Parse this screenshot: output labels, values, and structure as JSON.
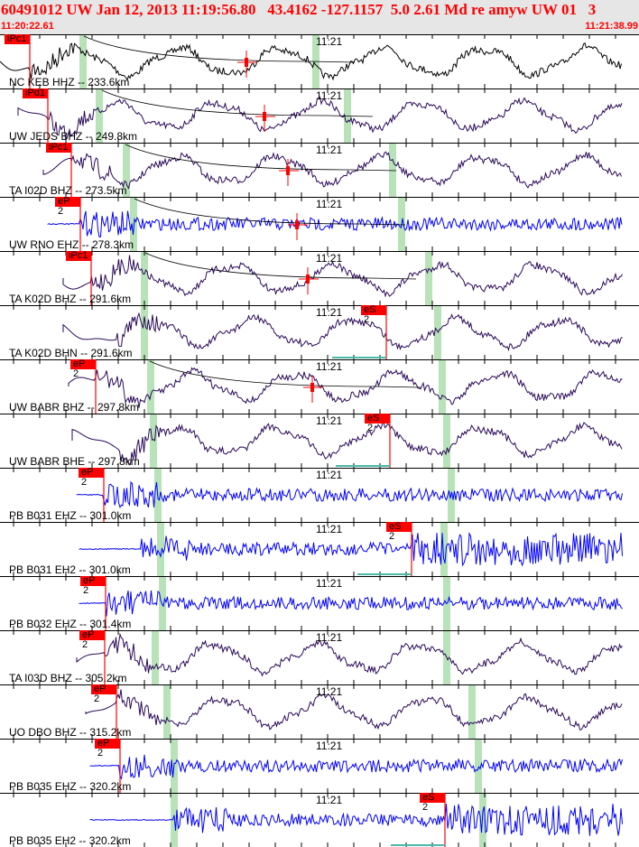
{
  "header": {
    "title": "60491012 UW Jan 12, 2013 11:19:56.80   43.4162 -127.1157  5.0 2.61 Md re amyw UW 01   3",
    "start_time": "11:20:22.61",
    "end_time": "11:21:38.99"
  },
  "time_mark": "11:21",
  "colors": {
    "pick": "#ff0000",
    "window": "#b8e2b8",
    "broadband": "#2a0a5a",
    "short_period": "#0000ff",
    "black": "#000000"
  },
  "traces": [
    {
      "label": "NC KEB HHZ -- 233.6km",
      "pick": "iPc1"
    },
    {
      "label": "UW JEDS BHZ -- 249.8km",
      "pick": "iPd1"
    },
    {
      "label": "TA I02D BHZ -- 273.5km",
      "pick": "iPc1"
    },
    {
      "label": "UW RNO EHZ -- 278.3km",
      "pick": "eP 2"
    },
    {
      "label": "TA K02D BHZ -- 291.6km",
      "pick": "iPc1"
    },
    {
      "label": "TA K02D BHN -- 291.6km",
      "pick": "eS 2"
    },
    {
      "label": "UW BABR BHZ -- 297.8km",
      "pick": "eP 2"
    },
    {
      "label": "UW BABR BHE -- 297.8km",
      "pick": "eS 2"
    },
    {
      "label": "PB B031 EHZ -- 301.0km",
      "pick": "eP 2"
    },
    {
      "label": "PB B031 EH2 -- 301.0km",
      "pick": "eS 2"
    },
    {
      "label": "PB B032 EHZ -- 301.4km",
      "pick": "eP 2"
    },
    {
      "label": "TA I03D BHZ -- 305.2km",
      "pick": "eP 2"
    },
    {
      "label": "UO DBO BHZ -- 315.2km",
      "pick": "eP 2"
    },
    {
      "label": "PB B035 EHZ -- 320.2km",
      "pick": "eP 2"
    },
    {
      "label": "PB B035 EH2 -- 320.2km",
      "pick": "eS 2"
    }
  ]
}
